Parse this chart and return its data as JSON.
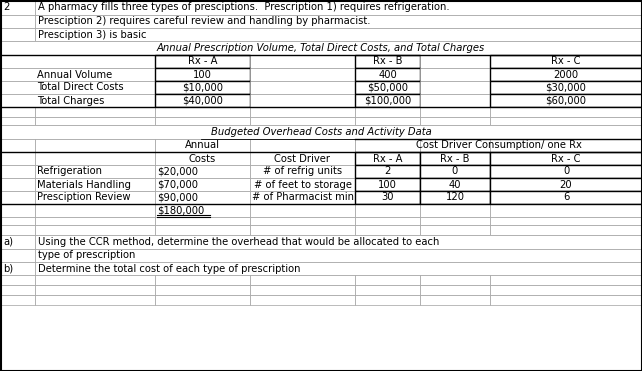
{
  "title_num": "2",
  "desc_lines": [
    "A pharmacy fills three types of presciptions.  Prescription 1) requires refrigeration.",
    "Presciption 2) requires careful review and handling by pharmacist.",
    "Presciption 3) is basic"
  ],
  "section1_title": "Annual Prescription Volume, Total Direct Costs, and Total Charges",
  "section1_headers": [
    "Rx - A",
    "Rx - B",
    "Rx - C"
  ],
  "section1_rows": [
    [
      "Annual Volume",
      "100",
      "400",
      "2000"
    ],
    [
      "Total Direct Costs",
      "$10,000",
      "$50,000",
      "$30,000"
    ],
    [
      "Total Charges",
      "$40,000",
      "$100,000",
      "$60,000"
    ]
  ],
  "section2_title": "Budgeted Overhead Costs and Activity Data",
  "section2_sub1": "Annual",
  "section2_sub2": "Costs",
  "section2_cdc": "Cost Driver Consumption/ one Rx",
  "section2_col_headers": [
    "Costs",
    "Cost Driver",
    "Rx - A",
    "Rx - B",
    "Rx - C"
  ],
  "section2_rows": [
    [
      "Refrigeration",
      "$20,000",
      "# of refrig units",
      "2",
      "0",
      "0"
    ],
    [
      "Materials Handling",
      "$70,000",
      "# of feet to storage",
      "100",
      "40",
      "20"
    ],
    [
      "Presciption Review",
      "$90,000",
      "# of Pharmacist min",
      "30",
      "120",
      "6"
    ]
  ],
  "total_label": "$180,000",
  "qa": "a)",
  "qa_text1": "Using the CCR method, determine the overhead that would be allocated to each",
  "qa_text2": "type of prescription",
  "qb": "b)",
  "qb_text": "Determine the total cost of each type of prescription",
  "bg_color": "#ffffff",
  "grid_color": "#a0a0a0",
  "bold_grid_color": "#000000",
  "font_size": 7.2
}
